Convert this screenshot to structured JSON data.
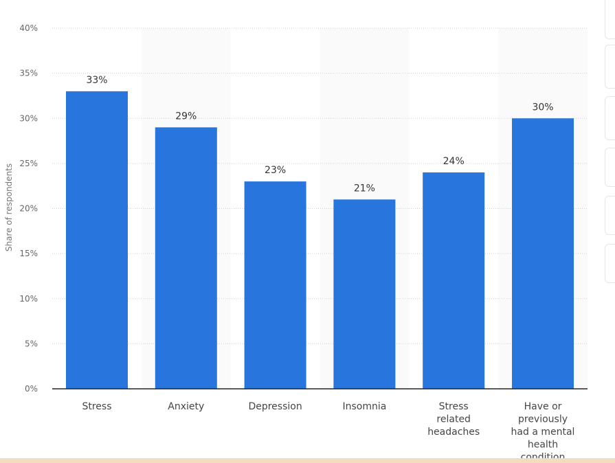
{
  "chart_data": {
    "type": "bar",
    "categories": [
      "Stress",
      "Anxiety",
      "Depression",
      "Insomnia",
      "Stress related headaches",
      "Have or previously had a mental health condition"
    ],
    "values": [
      33,
      29,
      23,
      21,
      24,
      30
    ],
    "data_labels": [
      "33%",
      "29%",
      "23%",
      "21%",
      "24%",
      "30%"
    ],
    "ylabel": "Share of respondents",
    "ylim": [
      0,
      40
    ],
    "yticks": [
      "0%",
      "5%",
      "10%",
      "15%",
      "20%",
      "25%",
      "30%",
      "35%",
      "40%"
    ],
    "grid": true,
    "bar_color": "#2876dd"
  }
}
